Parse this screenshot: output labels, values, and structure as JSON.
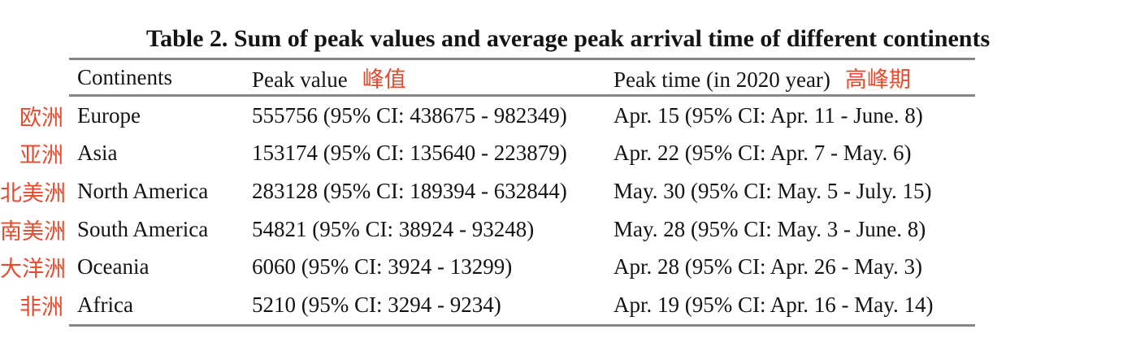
{
  "title": "Table 2. Sum of peak values and average peak arrival time of different continents",
  "header": {
    "continents": "Continents",
    "peak_value": "Peak value",
    "peak_value_zh": "峰值",
    "peak_time": "Peak time (in 2020 year)",
    "peak_time_zh": "高峰期"
  },
  "rows": [
    {
      "zh": "欧洲",
      "continent": "Europe",
      "peak_value": "555756 (95% CI: 438675 - 982349)",
      "peak_time": "Apr. 15 (95% CI: Apr. 11 - June. 8)"
    },
    {
      "zh": "亚洲",
      "continent": "Asia",
      "peak_value": "153174 (95% CI: 135640 - 223879)",
      "peak_time": "Apr. 22 (95% CI: Apr. 7 - May. 6)"
    },
    {
      "zh": "北美洲",
      "continent": "North America",
      "peak_value": "283128 (95% CI: 189394 - 632844)",
      "peak_time": "May. 30 (95% CI: May. 5 - July. 15)"
    },
    {
      "zh": "南美洲",
      "continent": "South America",
      "peak_value": "54821 (95% CI: 38924 - 93248)",
      "peak_time": "May. 28 (95% CI: May. 3 - June. 8)"
    },
    {
      "zh": "大洋洲",
      "continent": "Oceania",
      "peak_value": "6060 (95% CI: 3924 - 13299)",
      "peak_time": "Apr. 28 (95% CI: Apr. 26 - May. 3)"
    },
    {
      "zh": "非洲",
      "continent": "Africa",
      "peak_value": "5210 (95% CI: 3294 - 9234)",
      "peak_time": "Apr. 19 (95% CI: Apr. 16 - May. 14)"
    }
  ],
  "colors": {
    "annotation_red": "#e64b2d",
    "rule_gray": "#868686",
    "text_ink": "#141414"
  }
}
